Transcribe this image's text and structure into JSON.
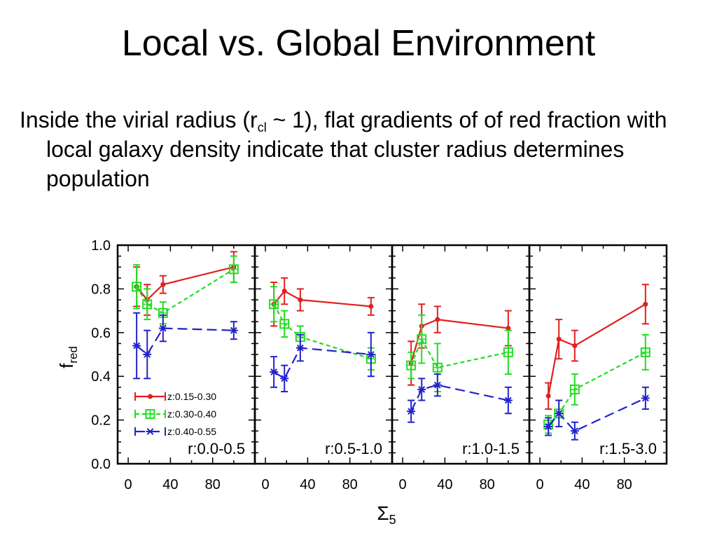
{
  "slide": {
    "title": "Local vs. Global Environment",
    "body_before": "Inside the virial radius (r",
    "body_sub": "cl",
    "body_after": " ~ 1), flat gradients of of red fraction with local galaxy density indicate that cluster radius determines population"
  },
  "chart_data": {
    "type": "line",
    "ylabel": "f",
    "ylabel_sub": "red",
    "xlabel": "Σ",
    "xlabel_sub": "5",
    "ylim": [
      0.0,
      1.0
    ],
    "xlim": [
      -10,
      120
    ],
    "y_ticks": [
      "0.0",
      "0.2",
      "0.4",
      "0.6",
      "0.8",
      "1.0"
    ],
    "x_ticks": [
      "0",
      "40",
      "80"
    ],
    "legend_position": "bottom-left of first panel",
    "series_colors": [
      "#e0201e",
      "#22dd22",
      "#2222cc"
    ],
    "legend": [
      {
        "label": "z:0.15-0.30",
        "color": "#e0201e",
        "marker": "dot",
        "dash": "solid"
      },
      {
        "label": "z:0.30-0.40",
        "color": "#22dd22",
        "marker": "square",
        "dash": "dotted"
      },
      {
        "label": "z:0.40-0.55",
        "color": "#2222cc",
        "marker": "asterisk",
        "dash": "dashed"
      }
    ],
    "panels": [
      {
        "label": "r:0.0-0.5",
        "series": [
          {
            "points": [
              [
                8,
                0.81,
                0.09
              ],
              [
                18,
                0.75,
                0.07
              ],
              [
                33,
                0.82,
                0.04
              ],
              [
                100,
                0.9,
                0.07
              ]
            ]
          },
          {
            "points": [
              [
                8,
                0.81,
                0.1
              ],
              [
                18,
                0.73,
                0.07
              ],
              [
                33,
                0.69,
                0.05
              ],
              [
                100,
                0.89,
                0.06
              ]
            ]
          },
          {
            "points": [
              [
                8,
                0.54,
                0.15
              ],
              [
                18,
                0.5,
                0.11
              ],
              [
                33,
                0.62,
                0.06
              ],
              [
                100,
                0.61,
                0.04
              ]
            ]
          }
        ]
      },
      {
        "label": "r:0.5-1.0",
        "series": [
          {
            "points": [
              [
                8,
                0.73,
                0.1
              ],
              [
                18,
                0.79,
                0.06
              ],
              [
                33,
                0.75,
                0.05
              ],
              [
                100,
                0.72,
                0.04
              ]
            ]
          },
          {
            "points": [
              [
                8,
                0.73,
                0.08
              ],
              [
                18,
                0.64,
                0.06
              ],
              [
                33,
                0.58,
                0.05
              ],
              [
                100,
                0.48,
                0.05
              ]
            ]
          },
          {
            "points": [
              [
                8,
                0.42,
                0.07
              ],
              [
                18,
                0.39,
                0.06
              ],
              [
                33,
                0.53,
                0.06
              ],
              [
                100,
                0.5,
                0.1
              ]
            ]
          }
        ]
      },
      {
        "label": "r:1.0-1.5",
        "series": [
          {
            "points": [
              [
                8,
                0.46,
                0.1
              ],
              [
                18,
                0.63,
                0.1
              ],
              [
                33,
                0.66,
                0.06
              ],
              [
                100,
                0.62,
                0.08
              ]
            ]
          },
          {
            "points": [
              [
                8,
                0.45,
                0.06
              ],
              [
                18,
                0.57,
                0.11
              ],
              [
                33,
                0.44,
                0.11
              ],
              [
                100,
                0.51,
                0.1
              ]
            ]
          },
          {
            "points": [
              [
                8,
                0.24,
                0.05
              ],
              [
                18,
                0.34,
                0.05
              ],
              [
                33,
                0.36,
                0.05
              ],
              [
                100,
                0.29,
                0.06
              ]
            ]
          }
        ]
      },
      {
        "label": "r:1.5-3.0",
        "series": [
          {
            "points": [
              [
                8,
                0.31,
                0.06
              ],
              [
                18,
                0.57,
                0.09
              ],
              [
                33,
                0.54,
                0.07
              ],
              [
                100,
                0.73,
                0.09
              ]
            ]
          },
          {
            "points": [
              [
                8,
                0.18,
                0.04
              ],
              [
                18,
                0.23,
                0.06
              ],
              [
                33,
                0.34,
                0.07
              ],
              [
                100,
                0.51,
                0.08
              ]
            ]
          },
          {
            "points": [
              [
                8,
                0.17,
                0.04
              ],
              [
                18,
                0.23,
                0.06
              ],
              [
                33,
                0.15,
                0.04
              ],
              [
                100,
                0.3,
                0.05
              ]
            ]
          }
        ]
      }
    ]
  }
}
